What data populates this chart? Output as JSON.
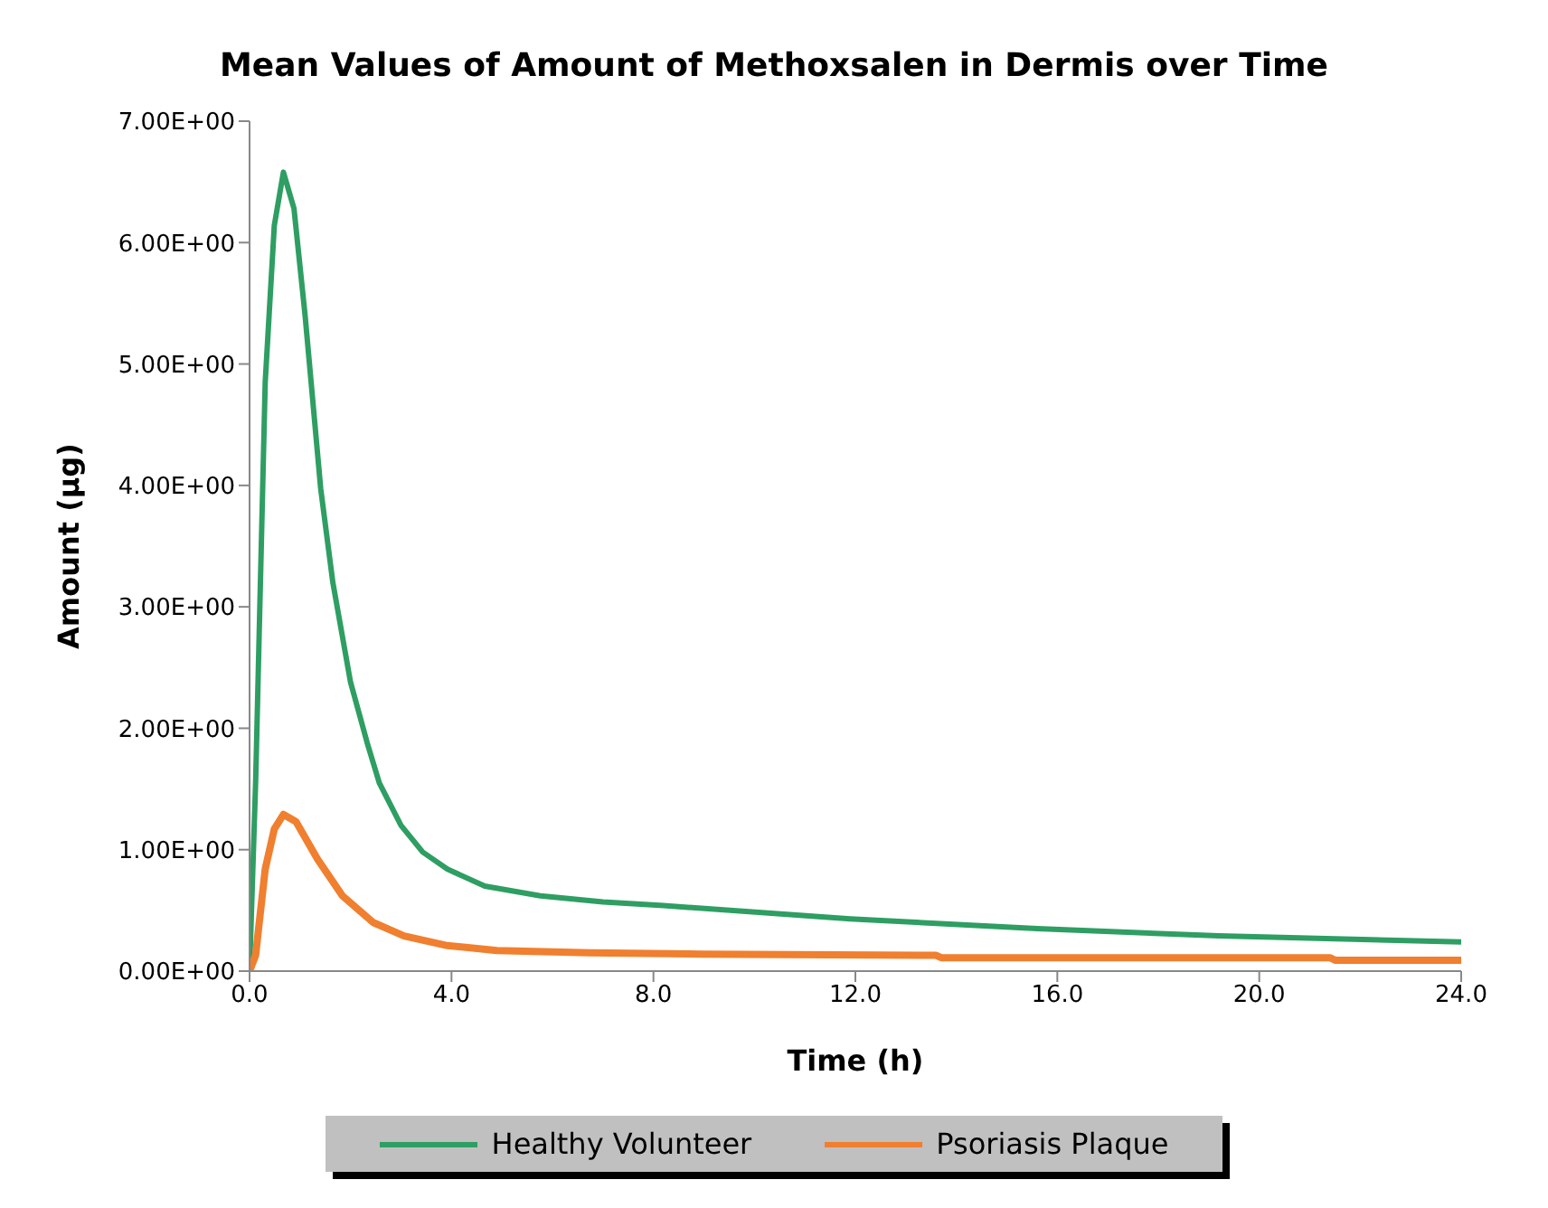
{
  "chart_data": {
    "type": "line",
    "title": "Mean Values of Amount of Methoxsalen in Dermis over Time",
    "xlabel": "Time (h)",
    "ylabel": "Amount (µg)",
    "xlim": [
      0,
      24
    ],
    "xticks": [
      {
        "value": 0,
        "label": "0.0"
      },
      {
        "value": 4,
        "label": "4.0"
      },
      {
        "value": 8,
        "label": "8.0"
      },
      {
        "value": 12,
        "label": "12.0"
      },
      {
        "value": 16,
        "label": "16.0"
      },
      {
        "value": 20,
        "label": "20.0"
      },
      {
        "value": 24,
        "label": "24.0"
      }
    ],
    "ylim": [
      0,
      7
    ],
    "yticks": [
      {
        "value": 0,
        "label": "0.00E+00"
      },
      {
        "value": 1,
        "label": "1.00E+00"
      },
      {
        "value": 2,
        "label": "2.00E+00"
      },
      {
        "value": 3,
        "label": "3.00E+00"
      },
      {
        "value": 4,
        "label": "4.00E+00"
      },
      {
        "value": 5,
        "label": "5.00E+00"
      },
      {
        "value": 6,
        "label": "6.00E+00"
      },
      {
        "value": 7,
        "label": "7.00E+00"
      }
    ],
    "grid": false,
    "legend": "bottom",
    "marker": "none",
    "line_style": "solid",
    "series": [
      {
        "name": "Healthy Volunteer",
        "color": "#2e9e63",
        "x": [
          0,
          0.12,
          0.31,
          0.49,
          0.67,
          0.88,
          1.1,
          1.41,
          1.65,
          2.0,
          2.33,
          2.57,
          3.0,
          3.43,
          3.92,
          4.66,
          5.76,
          7.0,
          8.2,
          11.9,
          15.6,
          19.2,
          24
        ],
        "values": [
          0,
          1.55,
          4.85,
          6.14,
          6.58,
          6.28,
          5.4,
          3.97,
          3.2,
          2.38,
          1.88,
          1.55,
          1.2,
          0.98,
          0.84,
          0.7,
          0.62,
          0.57,
          0.54,
          0.43,
          0.35,
          0.29,
          0.24
        ]
      },
      {
        "name": "Psoriasis Plaque",
        "color": "#f07f2f",
        "x": [
          0,
          0.12,
          0.31,
          0.49,
          0.67,
          0.92,
          1.35,
          1.84,
          2.45,
          3.06,
          3.92,
          4.9,
          6.74,
          8.95,
          13.6,
          13.7,
          21.4,
          21.5,
          24
        ],
        "values": [
          0,
          0.13,
          0.84,
          1.17,
          1.29,
          1.23,
          0.92,
          0.62,
          0.4,
          0.29,
          0.21,
          0.17,
          0.15,
          0.14,
          0.13,
          0.11,
          0.11,
          0.09,
          0.09
        ]
      }
    ]
  }
}
